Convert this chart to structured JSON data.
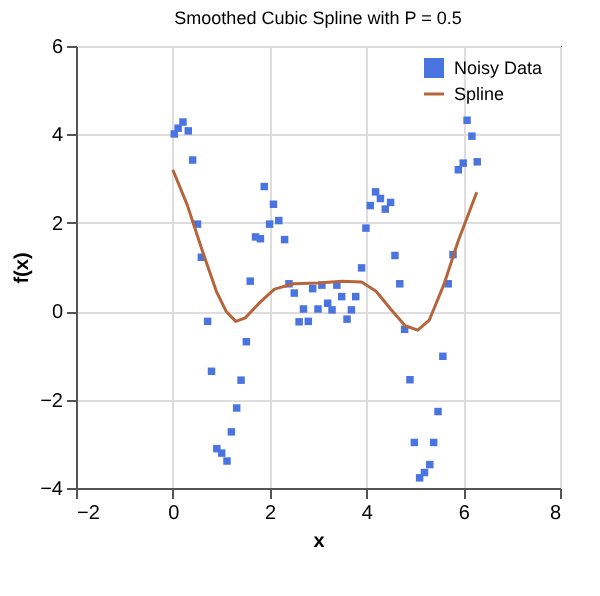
{
  "chart_data": {
    "type": "scatter",
    "title": "Smoothed Cubic Spline with P = 0.5",
    "xlabel": "x",
    "ylabel": "f(x)",
    "xlim": [
      -2,
      8
    ],
    "xticks": [
      -2,
      0,
      2,
      4,
      6,
      8
    ],
    "ylim": [
      -4,
      6
    ],
    "yticks": [
      -4,
      -2,
      0,
      2,
      4,
      6
    ],
    "grid": true,
    "legend": "top right",
    "series": [
      {
        "name": "Noisy Data",
        "marker": "square",
        "color": "#4a74e0",
        "x": [
          0.03,
          0.11,
          0.21,
          0.32,
          0.41,
          0.51,
          0.59,
          0.72,
          0.8,
          0.91,
          1.01,
          1.12,
          1.21,
          1.32,
          1.41,
          1.52,
          1.6,
          1.71,
          1.81,
          1.89,
          2.0,
          2.08,
          2.19,
          2.31,
          2.4,
          2.51,
          2.61,
          2.7,
          2.8,
          2.89,
          3.0,
          3.08,
          3.2,
          3.29,
          3.39,
          3.49,
          3.6,
          3.69,
          3.78,
          3.9,
          3.99,
          4.08,
          4.19,
          4.29,
          4.39,
          4.5,
          4.59,
          4.69,
          4.79,
          4.9,
          4.99,
          5.1,
          5.2,
          5.31,
          5.39,
          5.48,
          5.58,
          5.69,
          5.79,
          5.9,
          6.0,
          6.08,
          6.18,
          6.29
        ],
        "values": [
          4.01,
          4.14,
          4.28,
          4.08,
          3.42,
          1.97,
          1.22,
          -0.23,
          -1.36,
          -3.11,
          -3.21,
          -3.39,
          -2.73,
          -2.19,
          -1.56,
          -0.69,
          0.68,
          1.68,
          1.64,
          2.82,
          1.97,
          2.42,
          2.05,
          1.62,
          0.62,
          0.41,
          -0.24,
          0.05,
          -0.23,
          0.51,
          0.05,
          0.59,
          0.18,
          0.03,
          0.59,
          0.33,
          -0.18,
          0.03,
          0.33,
          0.98,
          1.88,
          2.39,
          2.7,
          2.55,
          2.31,
          2.46,
          1.26,
          0.62,
          -0.41,
          -1.55,
          -2.97,
          -3.77,
          -3.65,
          -3.47,
          -2.97,
          -2.27,
          -1.02,
          0.62,
          1.28,
          3.2,
          3.35,
          4.32,
          3.96,
          3.38
        ]
      },
      {
        "name": "Spline",
        "type": "line",
        "color": "#b5643c",
        "x": [
          0,
          0.3,
          0.6,
          0.9,
          1.1,
          1.3,
          1.5,
          1.8,
          2.1,
          2.5,
          3.0,
          3.5,
          3.9,
          4.2,
          4.5,
          4.8,
          5.06,
          5.3,
          5.6,
          5.9,
          6.28
        ],
        "values": [
          3.2,
          2.4,
          1.4,
          0.45,
          0.0,
          -0.23,
          -0.15,
          0.2,
          0.5,
          0.62,
          0.64,
          0.68,
          0.66,
          0.45,
          0.05,
          -0.33,
          -0.43,
          -0.2,
          0.6,
          1.6,
          2.69
        ]
      }
    ]
  }
}
